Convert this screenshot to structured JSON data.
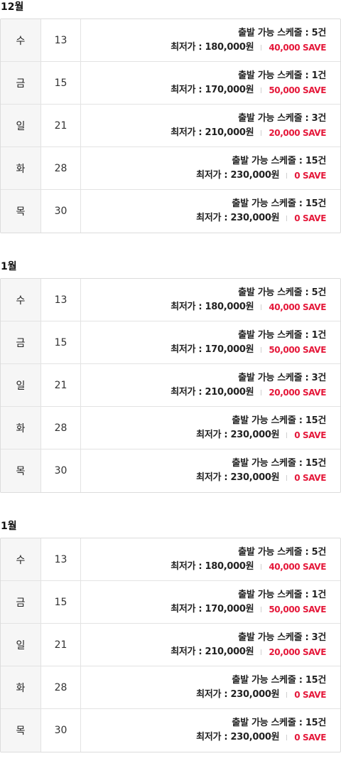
{
  "sections": [
    {
      "month": "12월",
      "rows": [
        {
          "day": "수",
          "date": "13",
          "schedule": "출발 가능 스케줄 : 5건",
          "price": "최저가 : 180,000원",
          "save": "40,000 SAVE"
        },
        {
          "day": "금",
          "date": "15",
          "schedule": "출발 가능 스케줄 : 1건",
          "price": "최저가 : 170,000원",
          "save": "50,000 SAVE"
        },
        {
          "day": "일",
          "date": "21",
          "schedule": "출발 가능 스케줄 : 3건",
          "price": "최저가 : 210,000원",
          "save": "20,000 SAVE"
        },
        {
          "day": "화",
          "date": "28",
          "schedule": "출발 가능 스케줄 : 15건",
          "price": "최저가 : 230,000원",
          "save": "0 SAVE"
        },
        {
          "day": "목",
          "date": "30",
          "schedule": "출발 가능 스케줄 : 15건",
          "price": "최저가 : 230,000원",
          "save": "0 SAVE"
        }
      ]
    },
    {
      "month": "1월",
      "rows": [
        {
          "day": "수",
          "date": "13",
          "schedule": "출발 가능 스케줄 : 5건",
          "price": "최저가 : 180,000원",
          "save": "40,000 SAVE"
        },
        {
          "day": "금",
          "date": "15",
          "schedule": "출발 가능 스케줄 : 1건",
          "price": "최저가 : 170,000원",
          "save": "50,000 SAVE"
        },
        {
          "day": "일",
          "date": "21",
          "schedule": "출발 가능 스케줄 : 3건",
          "price": "최저가 : 210,000원",
          "save": "20,000 SAVE"
        },
        {
          "day": "화",
          "date": "28",
          "schedule": "출발 가능 스케줄 : 15건",
          "price": "최저가 : 230,000원",
          "save": "0 SAVE"
        },
        {
          "day": "목",
          "date": "30",
          "schedule": "출발 가능 스케줄 : 15건",
          "price": "최저가 : 230,000원",
          "save": "0 SAVE"
        }
      ]
    },
    {
      "month": "1월",
      "rows": [
        {
          "day": "수",
          "date": "13",
          "schedule": "출발 가능 스케줄 : 5건",
          "price": "최저가 : 180,000원",
          "save": "40,000 SAVE"
        },
        {
          "day": "금",
          "date": "15",
          "schedule": "출발 가능 스케줄 : 1건",
          "price": "최저가 : 170,000원",
          "save": "50,000 SAVE"
        },
        {
          "day": "일",
          "date": "21",
          "schedule": "출발 가능 스케줄 : 3건",
          "price": "최저가 : 210,000원",
          "save": "20,000 SAVE"
        },
        {
          "day": "화",
          "date": "28",
          "schedule": "출발 가능 스케줄 : 15건",
          "price": "최저가 : 230,000원",
          "save": "0 SAVE"
        },
        {
          "day": "목",
          "date": "30",
          "schedule": "출발 가능 스케줄 : 15건",
          "price": "최저가 : 230,000원",
          "save": "0 SAVE"
        }
      ]
    }
  ],
  "colors": {
    "save": "#e5183a",
    "day_bg": "#f6f6f6",
    "border": "#dcdcdc"
  }
}
